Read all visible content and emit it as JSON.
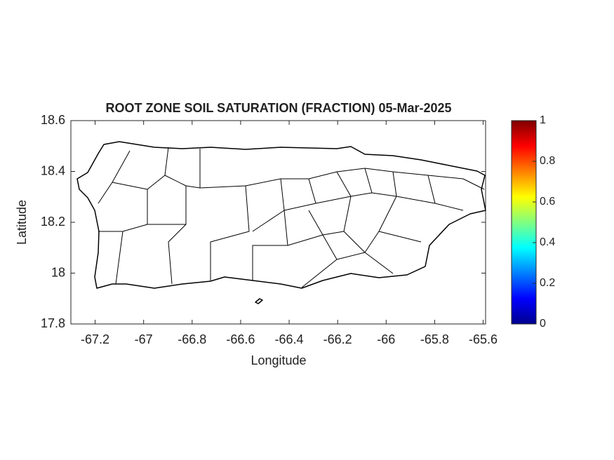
{
  "chart_data": {
    "type": "map",
    "title": "ROOT ZONE SOIL SATURATION (FRACTION) 05-Mar-2025",
    "xlabel": "Longitude",
    "ylabel": "Latitude",
    "xlim": [
      -67.3,
      -65.59
    ],
    "xticks": [
      -67.2,
      -67,
      -66.8,
      -66.6,
      -66.4,
      -66.2,
      -66,
      -65.8,
      -65.6
    ],
    "ylim": [
      17.8,
      18.6
    ],
    "yticks": [
      17.8,
      18,
      18.2,
      18.4,
      18.6
    ],
    "colorbar": {
      "colormap": "jet",
      "lim": [
        0,
        1
      ],
      "ticks": [
        0,
        0.2,
        0.4,
        0.6,
        0.8,
        1
      ]
    }
  }
}
